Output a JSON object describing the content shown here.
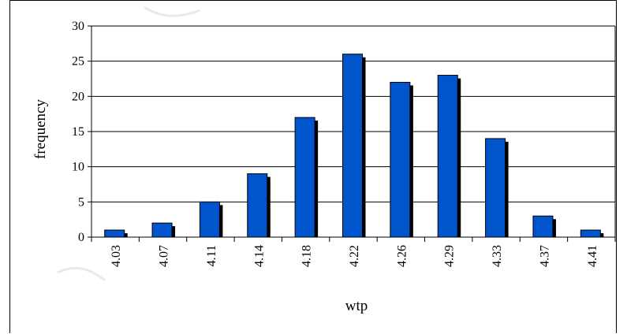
{
  "chart_data": {
    "type": "bar",
    "title": "",
    "xlabel": "wtp",
    "ylabel": "frequency",
    "categories": [
      "4.03",
      "4.07",
      "4.11",
      "4.14",
      "4.18",
      "4.22",
      "4.26",
      "4.29",
      "4.33",
      "4.37",
      "4.41"
    ],
    "values": [
      1,
      2,
      5,
      9,
      17,
      26,
      22,
      23,
      14,
      3,
      1
    ],
    "ylim": [
      0,
      30
    ],
    "yticks": [
      0,
      5,
      10,
      15,
      20,
      25,
      30
    ],
    "grid": true,
    "legend": "none",
    "bar_color": "#0055cc",
    "shadow_color": "#000000"
  }
}
